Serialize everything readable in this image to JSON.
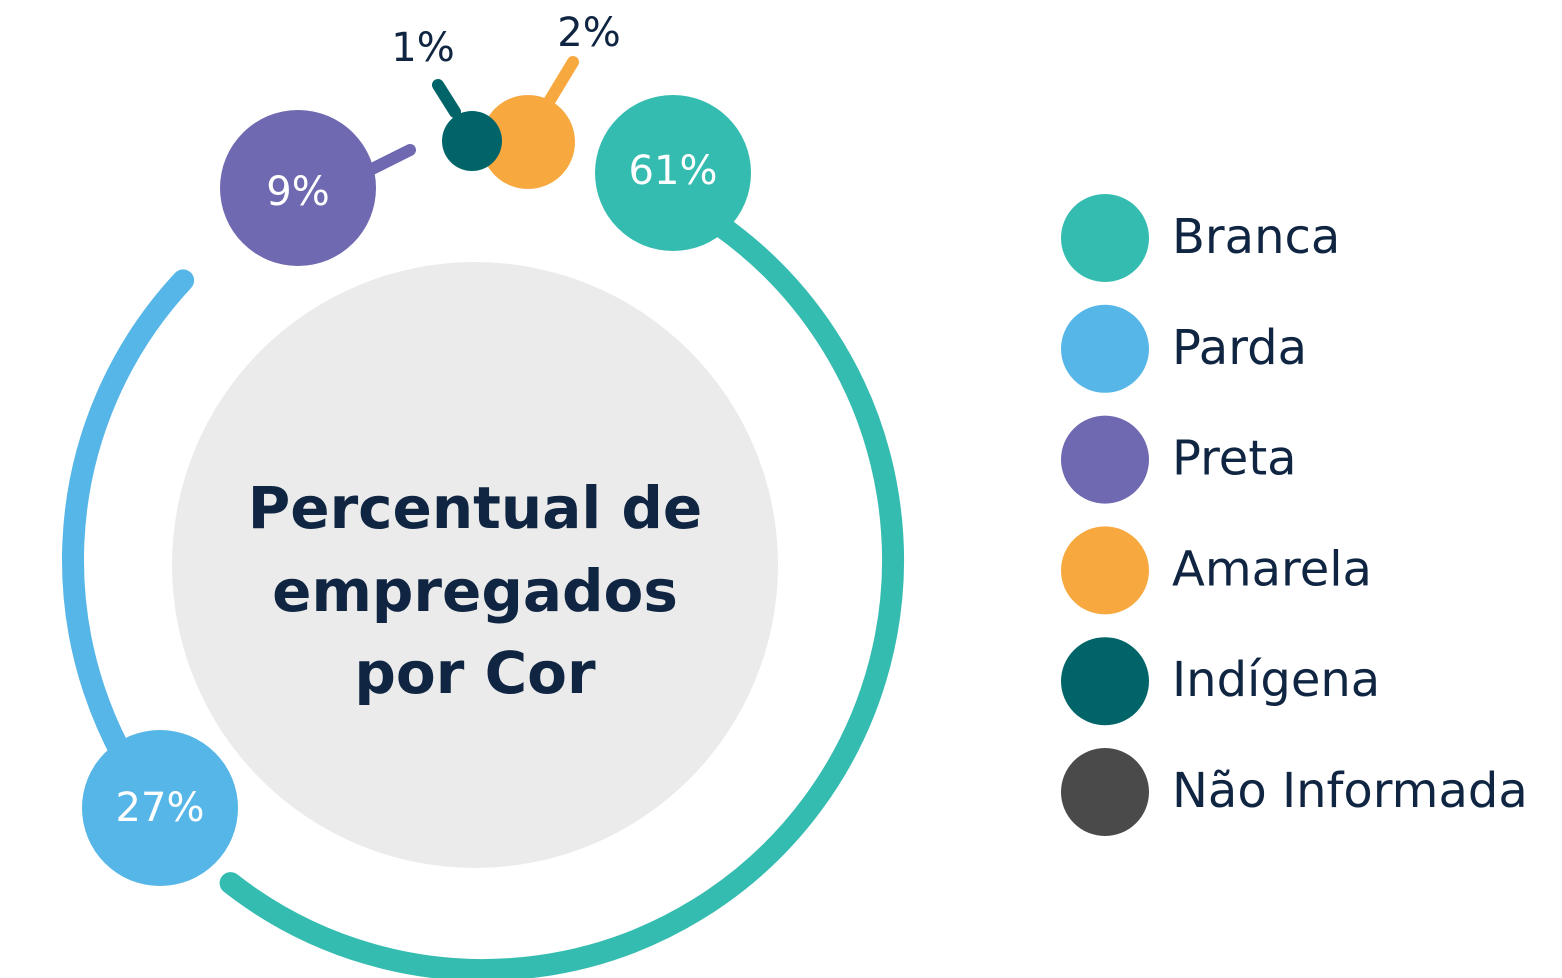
{
  "chart_data": {
    "type": "radial-bubble",
    "title_lines": [
      "Percentual de",
      "empregados",
      "por Cor"
    ],
    "categories": [
      "Branca",
      "Parda",
      "Preta",
      "Amarela",
      "Indígena",
      "Não Informada"
    ],
    "values": [
      61,
      27,
      9,
      2,
      1,
      null
    ],
    "value_labels": [
      "61%",
      "27%",
      "9%",
      "2%",
      "1%",
      null
    ],
    "colors": [
      "#35bcb0",
      "#56b6e8",
      "#6e69b0",
      "#f7a83e",
      "#006468",
      "#4a4a4a"
    ],
    "legend": "right"
  }
}
